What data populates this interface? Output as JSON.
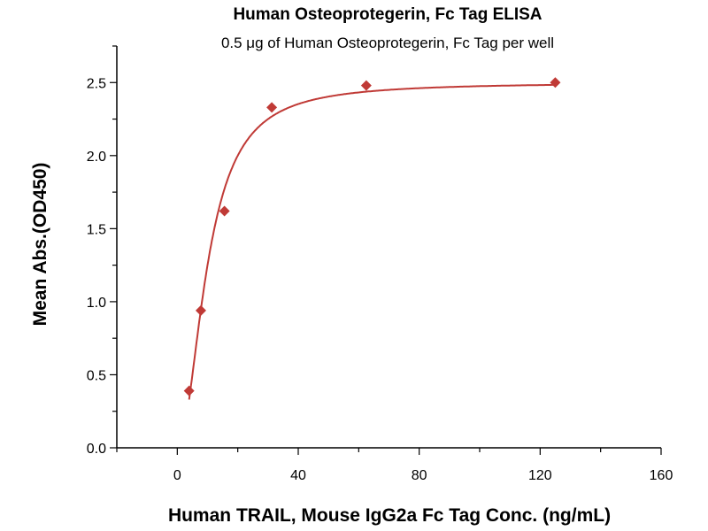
{
  "chart_data": {
    "type": "scatter",
    "title": "Human Osteoprotegerin, Fc Tag ELISA",
    "subtitle": "0.5 μg of Human Osteoprotegerin, Fc Tag per well",
    "xlabel": "Human TRAIL, Mouse IgG2a Fc Tag Conc. (ng/mL)",
    "ylabel": "Mean Abs.(OD450)",
    "xlim": [
      -20,
      160
    ],
    "ylim": [
      0,
      2.75
    ],
    "x_ticks": [
      0,
      40,
      80,
      120,
      160
    ],
    "x_tick_labels": [
      "0",
      "40",
      "80",
      "120",
      "160"
    ],
    "x_minor_ticks": [
      -20,
      20,
      60,
      100,
      140
    ],
    "y_ticks": [
      0,
      0.5,
      1.0,
      1.5,
      2.0,
      2.5
    ],
    "y_tick_labels": [
      "0.0",
      "0.5",
      "1.0",
      "1.5",
      "2.0",
      "2.5"
    ],
    "y_minor_ticks": [
      0.25,
      0.75,
      1.25,
      1.75,
      2.25,
      2.75
    ],
    "grid": false,
    "series": [
      {
        "name": "Human TRAIL, Mouse IgG2a Fc Tag",
        "color": "#c03a36",
        "marker": "diamond",
        "x": [
          3.9,
          7.8,
          15.6,
          31.25,
          62.5,
          125
        ],
        "y": [
          0.39,
          0.94,
          1.62,
          2.33,
          2.48,
          2.5
        ],
        "fit": {
          "model": "4PL",
          "bottom": 0,
          "top": 2.5,
          "ec50": 10,
          "hill": 2,
          "x_range": [
            3.9,
            125
          ]
        }
      }
    ]
  }
}
